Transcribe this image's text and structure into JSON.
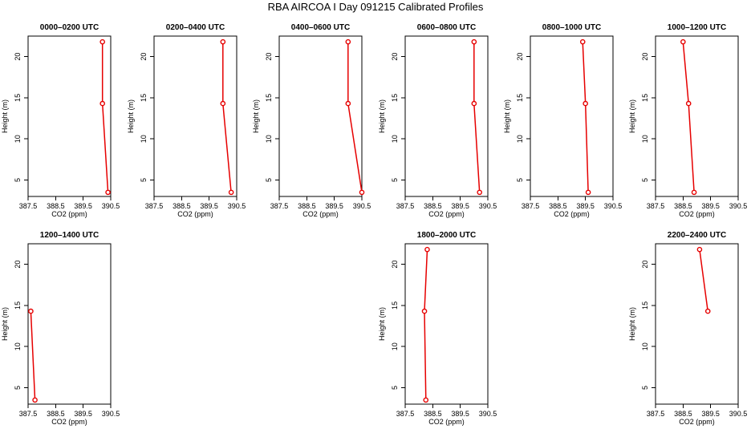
{
  "figure": {
    "title": "RBA AIRCOA I  Day 091215  Calibrated Profiles",
    "series_color": "#e60000"
  },
  "chart_data": [
    {
      "type": "line",
      "title": "0000–0200 UTC",
      "xlabel": "CO2 (ppm)",
      "ylabel": "Height (m)",
      "xlim": [
        387.5,
        390.5
      ],
      "ylim": [
        3,
        22.5
      ],
      "xticks": [
        "387.5",
        "388.5",
        "389.5",
        "390.5"
      ],
      "yticks": [
        "5",
        "10",
        "15",
        "20"
      ],
      "series": [
        {
          "x": [
            390.4,
            390.2,
            390.2
          ],
          "y": [
            3.5,
            14.3,
            21.8
          ]
        }
      ]
    },
    {
      "type": "line",
      "title": "0200–0400 UTC",
      "xlabel": "CO2 (ppm)",
      "ylabel": "Height (m)",
      "xlim": [
        387.5,
        390.5
      ],
      "ylim": [
        3,
        22.5
      ],
      "xticks": [
        "387.5",
        "388.5",
        "389.5",
        "390.5"
      ],
      "yticks": [
        "5",
        "10",
        "15",
        "20"
      ],
      "series": [
        {
          "x": [
            390.3,
            390.0,
            390.0
          ],
          "y": [
            3.5,
            14.3,
            21.8
          ]
        }
      ]
    },
    {
      "type": "line",
      "title": "0400–0600 UTC",
      "xlabel": "CO2 (ppm)",
      "ylabel": "Height (m)",
      "xlim": [
        387.5,
        390.5
      ],
      "ylim": [
        3,
        22.5
      ],
      "xticks": [
        "387.5",
        "388.5",
        "389.5",
        "390.5"
      ],
      "yticks": [
        "5",
        "10",
        "15",
        "20"
      ],
      "series": [
        {
          "x": [
            390.5,
            390.0,
            390.0
          ],
          "y": [
            3.5,
            14.3,
            21.8
          ]
        }
      ]
    },
    {
      "type": "line",
      "title": "0600–0800 UTC",
      "xlabel": "CO2 (ppm)",
      "ylabel": "Height (m)",
      "xlim": [
        387.5,
        390.5
      ],
      "ylim": [
        3,
        22.5
      ],
      "xticks": [
        "387.5",
        "388.5",
        "389.5",
        "390.5"
      ],
      "yticks": [
        "5",
        "10",
        "15",
        "20"
      ],
      "series": [
        {
          "x": [
            390.2,
            390.0,
            390.0
          ],
          "y": [
            3.5,
            14.3,
            21.8
          ]
        }
      ]
    },
    {
      "type": "line",
      "title": "0800–1000 UTC",
      "xlabel": "CO2 (ppm)",
      "ylabel": "Height (m)",
      "xlim": [
        387.5,
        390.5
      ],
      "ylim": [
        3,
        22.5
      ],
      "xticks": [
        "387.5",
        "388.5",
        "389.5",
        "390.5"
      ],
      "yticks": [
        "5",
        "10",
        "15",
        "20"
      ],
      "series": [
        {
          "x": [
            389.6,
            389.5,
            389.4
          ],
          "y": [
            3.5,
            14.3,
            21.8
          ]
        }
      ]
    },
    {
      "type": "line",
      "title": "1000–1200 UTC",
      "xlabel": "CO2 (ppm)",
      "ylabel": "Height (m)",
      "xlim": [
        387.5,
        390.5
      ],
      "ylim": [
        3,
        22.5
      ],
      "xticks": [
        "387.5",
        "388.5",
        "389.5",
        "390.5"
      ],
      "yticks": [
        "5",
        "10",
        "15",
        "20"
      ],
      "series": [
        {
          "x": [
            388.9,
            388.7,
            388.5
          ],
          "y": [
            3.5,
            14.3,
            21.8
          ]
        }
      ]
    },
    {
      "type": "line",
      "title": "1200–1400 UTC",
      "xlabel": "CO2 (ppm)",
      "ylabel": "Height (m)",
      "xlim": [
        387.5,
        390.5
      ],
      "ylim": [
        3,
        22.5
      ],
      "xticks": [
        "387.5",
        "388.5",
        "389.5",
        "390.5"
      ],
      "yticks": [
        "5",
        "10",
        "15",
        "20"
      ],
      "series": [
        {
          "x": [
            387.75,
            387.6
          ],
          "y": [
            3.5,
            14.3
          ]
        }
      ]
    },
    {
      "type": "line",
      "title": "1800–2000 UTC",
      "xlabel": "CO2 (ppm)",
      "ylabel": "Height (m)",
      "xlim": [
        387.5,
        390.5
      ],
      "ylim": [
        3,
        22.5
      ],
      "xticks": [
        "387.5",
        "388.5",
        "389.5",
        "390.5"
      ],
      "yticks": [
        "5",
        "10",
        "15",
        "20"
      ],
      "series": [
        {
          "x": [
            388.25,
            388.2,
            388.3
          ],
          "y": [
            3.5,
            14.3,
            21.8
          ]
        }
      ]
    },
    {
      "type": "line",
      "title": "2200–2400 UTC",
      "xlabel": "CO2 (ppm)",
      "ylabel": "Height (m)",
      "xlim": [
        387.5,
        390.5
      ],
      "ylim": [
        3,
        22.5
      ],
      "xticks": [
        "387.5",
        "388.5",
        "389.5",
        "390.5"
      ],
      "yticks": [
        "5",
        "10",
        "15",
        "20"
      ],
      "series": [
        {
          "x": [
            389.4,
            389.1
          ],
          "y": [
            14.3,
            21.8
          ]
        }
      ]
    }
  ]
}
